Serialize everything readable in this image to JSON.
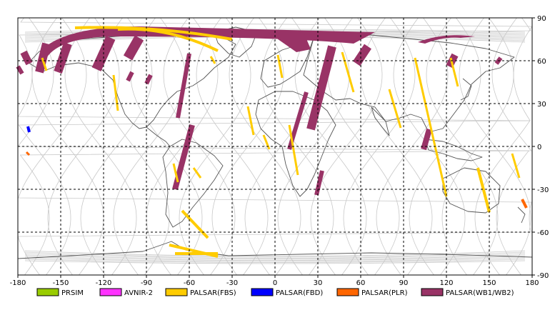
{
  "map": {
    "lon_range": [
      -180,
      180
    ],
    "lat_range": [
      -90,
      90
    ],
    "x_ticks": [
      "-180",
      "-150",
      "-120",
      "-90",
      "-60",
      "-30",
      "0",
      "30",
      "60",
      "90",
      "120",
      "150",
      "180"
    ],
    "y_ticks": [
      "90",
      "60",
      "30",
      "0",
      "-30",
      "-60",
      "-90"
    ],
    "grid": true,
    "colors": {
      "land_outline": "#555555",
      "orbit_track": "#c8c8c8",
      "grid": "#000000"
    }
  },
  "legend": {
    "items": [
      {
        "label": "PRSIM",
        "color": "#99cc00"
      },
      {
        "label": "AVNIR-2",
        "color": "#ff33ff"
      },
      {
        "label": "PALSAR(FBS)",
        "color": "#ffcc00"
      },
      {
        "label": "PALSAR(FBD)",
        "color": "#0000ff"
      },
      {
        "label": "PALSAR(PLR)",
        "color": "#ff6600"
      },
      {
        "label": "PALSAR(WB1/WB2)",
        "color": "#993366"
      }
    ]
  },
  "swaths": {
    "wb": [
      {
        "from": [
          -176,
          66
        ],
        "to": [
          -172,
          58
        ],
        "width": 5
      },
      {
        "from": [
          -160,
          72
        ],
        "to": [
          -165,
          52
        ],
        "width": 6
      },
      {
        "from": [
          -145,
          72
        ],
        "to": [
          -152,
          52
        ],
        "width": 6
      },
      {
        "from": [
          -115,
          76
        ],
        "to": [
          -125,
          54
        ],
        "width": 7
      },
      {
        "from": [
          -95,
          76
        ],
        "to": [
          -103,
          62
        ],
        "width": 7
      },
      {
        "from": [
          -100,
          52
        ],
        "to": [
          -103,
          46
        ],
        "width": 3
      },
      {
        "from": [
          -87,
          50
        ],
        "to": [
          -90,
          44
        ],
        "width": 3
      },
      {
        "from": [
          -60,
          65
        ],
        "to": [
          -68,
          20
        ],
        "width": 3
      },
      {
        "from": [
          -58,
          15
        ],
        "to": [
          -70,
          -30
        ],
        "width": 4
      },
      {
        "from": [
          40,
          70
        ],
        "to": [
          25,
          12
        ],
        "width": 6
      },
      {
        "from": [
          22,
          38
        ],
        "to": [
          10,
          -2
        ],
        "width": 3
      },
      {
        "from": [
          33,
          -17
        ],
        "to": [
          29,
          -34
        ],
        "width": 3
      },
      {
        "from": [
          65,
          70
        ],
        "to": [
          57,
          58
        ],
        "width": 6
      },
      {
        "from": [
          108,
          12
        ],
        "to": [
          104,
          -2
        ],
        "width": 4
      },
      {
        "from": [
          126,
          64
        ],
        "to": [
          122,
          56
        ],
        "width": 5
      },
      {
        "from": [
          158,
          62
        ],
        "to": [
          155,
          58
        ],
        "width": 3
      },
      {
        "from": [
          -180,
          56
        ],
        "to": [
          -177,
          51
        ],
        "width": 3
      }
    ],
    "fbs": [
      {
        "from": [
          -163,
          62
        ],
        "to": [
          -160,
          53
        ],
        "width": 1.5
      },
      {
        "from": [
          -113,
          50
        ],
        "to": [
          -110,
          25
        ],
        "width": 1.5
      },
      {
        "from": [
          -71,
          -12
        ],
        "to": [
          -68,
          -25
        ],
        "width": 1.5
      },
      {
        "from": [
          -45,
          63
        ],
        "to": [
          -42,
          58
        ],
        "width": 1.5
      },
      {
        "from": [
          -19,
          28
        ],
        "to": [
          -15,
          8
        ],
        "width": 1.5
      },
      {
        "from": [
          -8,
          8
        ],
        "to": [
          -4,
          -2
        ],
        "width": 1.5
      },
      {
        "from": [
          2,
          64
        ],
        "to": [
          5,
          48
        ],
        "width": 1.5
      },
      {
        "from": [
          10,
          15
        ],
        "to": [
          16,
          -20
        ],
        "width": 1.5
      },
      {
        "from": [
          47,
          66
        ],
        "to": [
          55,
          38
        ],
        "width": 1.5
      },
      {
        "from": [
          80,
          40
        ],
        "to": [
          88,
          13
        ],
        "width": 1.5
      },
      {
        "from": [
          -65,
          -45
        ],
        "to": [
          -47,
          -64
        ],
        "width": 2
      },
      {
        "from": [
          98,
          62
        ],
        "to": [
          120,
          -35
        ],
        "width": 1.5
      },
      {
        "from": [
          123,
          62
        ],
        "to": [
          128,
          42
        ],
        "width": 1.5
      },
      {
        "from": [
          142,
          -15
        ],
        "to": [
          150,
          -46
        ],
        "width": 2
      },
      {
        "from": [
          166,
          -5
        ],
        "to": [
          171,
          -22
        ],
        "width": 1.5
      },
      {
        "from": [
          -57,
          -15
        ],
        "to": [
          -52,
          -22
        ],
        "width": 1.5
      },
      {
        "from": [
          -74,
          -69
        ],
        "to": [
          -40,
          -77
        ],
        "width": 2
      },
      {
        "from": [
          -70,
          -75
        ],
        "to": [
          -40,
          -75
        ],
        "width": 2
      }
    ],
    "fbs_north": [
      {
        "from": [
          -140,
          83
        ],
        "to": [
          -30,
          75
        ],
        "width": 2
      },
      {
        "from": [
          -110,
          82
        ],
        "to": [
          -40,
          67
        ],
        "width": 2
      }
    ],
    "fbd": [
      {
        "from": [
          -173,
          14
        ],
        "to": [
          -172,
          10
        ],
        "width": 2
      }
    ],
    "plr": [
      {
        "from": [
          173,
          -37
        ],
        "to": [
          176,
          -43
        ],
        "width": 2
      },
      {
        "from": [
          -174,
          -4
        ],
        "to": [
          -172,
          -6
        ],
        "width": 1.5
      }
    ]
  }
}
